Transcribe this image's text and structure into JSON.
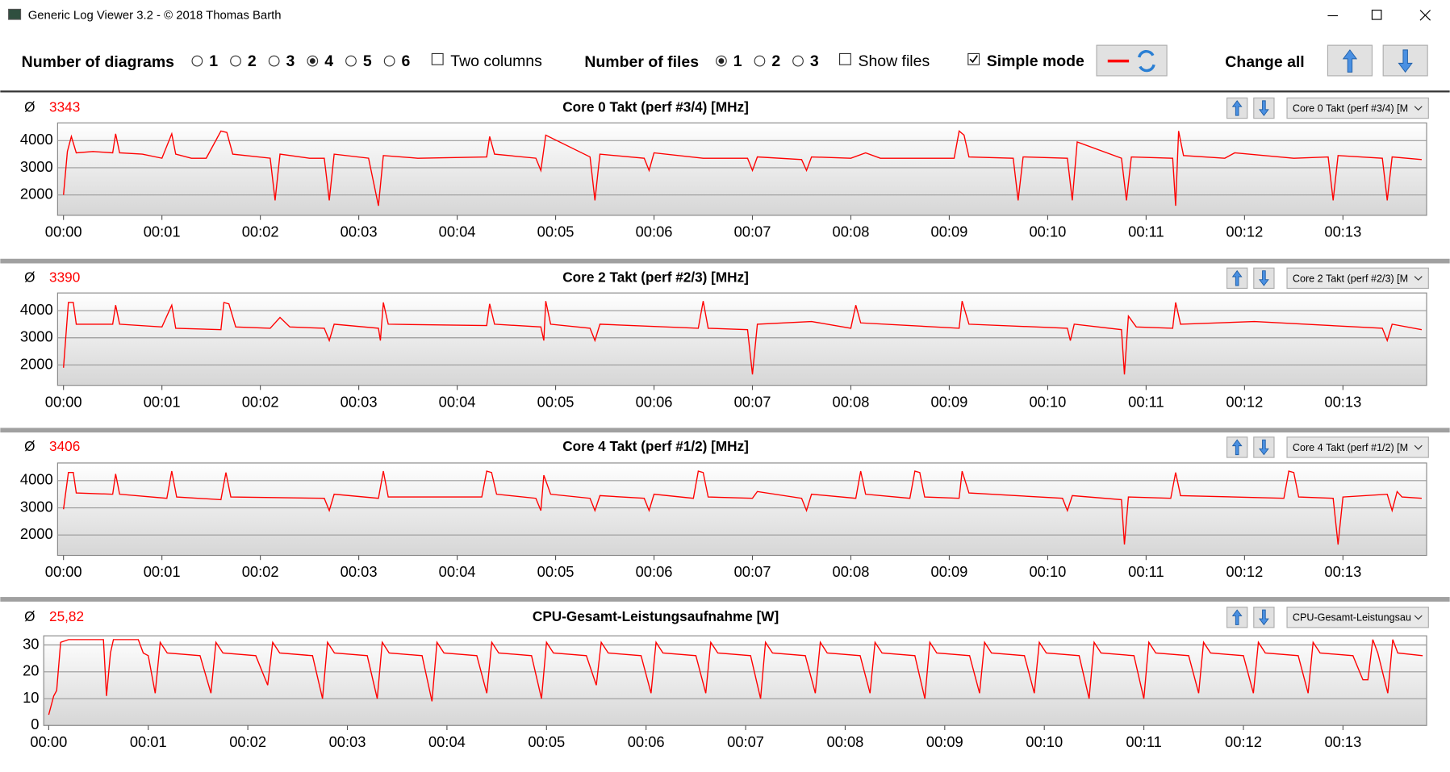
{
  "window": {
    "title": "Generic Log Viewer 3.2 - © 2018 Thomas Barth"
  },
  "toolbar": {
    "diagrams_label": "Number of diagrams",
    "diagram_options": [
      "1",
      "2",
      "3",
      "4",
      "5",
      "6"
    ],
    "diagrams_selected": "4",
    "two_columns": "Two columns",
    "two_columns_checked": false,
    "files_label": "Number of files",
    "file_options": [
      "1",
      "2",
      "3"
    ],
    "files_selected": "1",
    "show_files": "Show files",
    "show_files_checked": false,
    "simple_mode": "Simple mode",
    "simple_mode_checked": true,
    "change_all": "Change all"
  },
  "chart_data": [
    {
      "type": "line",
      "title": "Core 0 Takt (perf #3/4) [MHz]",
      "average_symbol": "Ø",
      "average": "3343",
      "selector": "Core 0 Takt (perf #3/4) [M",
      "color": "#ff0000",
      "x": [
        0,
        0.04,
        0.08,
        0.13,
        0.3,
        0.5,
        0.53,
        0.57,
        0.8,
        1.0,
        1.1,
        1.14,
        1.3,
        1.45,
        1.6,
        1.66,
        1.72,
        2.1,
        2.15,
        2.2,
        2.5,
        2.65,
        2.7,
        2.75,
        3.1,
        3.2,
        3.25,
        3.6,
        4.3,
        4.33,
        4.38,
        4.8,
        4.85,
        4.9,
        5.35,
        5.4,
        5.45,
        5.9,
        5.95,
        6.0,
        6.5,
        6.95,
        7.0,
        7.05,
        7.5,
        7.55,
        7.6,
        8.0,
        8.15,
        8.3,
        9.05,
        9.1,
        9.15,
        9.2,
        9.65,
        9.7,
        9.75,
        10.2,
        10.25,
        10.3,
        10.75,
        10.8,
        10.85,
        11.27,
        11.3,
        11.33,
        11.38,
        11.8,
        11.9,
        12.5,
        12.85,
        12.9,
        12.95,
        13.4,
        13.45,
        13.5,
        13.8
      ],
      "values": [
        2000,
        3600,
        4150,
        3550,
        3600,
        3550,
        4250,
        3550,
        3500,
        3350,
        4250,
        3500,
        3350,
        3350,
        4350,
        4300,
        3500,
        3350,
        1800,
        3500,
        3350,
        3350,
        1800,
        3500,
        3350,
        1600,
        3450,
        3350,
        3400,
        4150,
        3500,
        3350,
        2900,
        4200,
        3400,
        1800,
        3500,
        3350,
        2900,
        3550,
        3350,
        3350,
        2900,
        3400,
        3300,
        2900,
        3400,
        3350,
        3550,
        3350,
        3350,
        4350,
        4200,
        3400,
        3350,
        1800,
        3400,
        3350,
        1800,
        3950,
        3350,
        1800,
        3400,
        3350,
        1600,
        4350,
        3450,
        3350,
        3550,
        3350,
        3400,
        1800,
        3450,
        3350,
        1800,
        3400,
        3300
      ],
      "xlim": [
        -0.06,
        13.85
      ],
      "ylim": [
        1250,
        4650
      ],
      "yticks": [
        2000,
        3000,
        4000
      ],
      "xticks": [
        {
          "value": 0,
          "label": "00:00"
        },
        {
          "value": 1,
          "label": "00:01"
        },
        {
          "value": 2,
          "label": "00:02"
        },
        {
          "value": 3,
          "label": "00:03"
        },
        {
          "value": 4,
          "label": "00:04"
        },
        {
          "value": 5,
          "label": "00:05"
        },
        {
          "value": 6,
          "label": "00:06"
        },
        {
          "value": 7,
          "label": "00:07"
        },
        {
          "value": 8,
          "label": "00:08"
        },
        {
          "value": 9,
          "label": "00:09"
        },
        {
          "value": 10,
          "label": "00:10"
        },
        {
          "value": 11,
          "label": "00:11"
        },
        {
          "value": 12,
          "label": "00:12"
        },
        {
          "value": 13,
          "label": "00:13"
        }
      ],
      "grid": true
    },
    {
      "type": "line",
      "title": "Core 2 Takt (perf #2/3) [MHz]",
      "average_symbol": "Ø",
      "average": "3390",
      "selector": "Core 2 Takt (perf #2/3) [M",
      "color": "#ff0000",
      "x": [
        0,
        0.05,
        0.1,
        0.13,
        0.5,
        0.53,
        0.57,
        1.0,
        1.1,
        1.14,
        1.6,
        1.63,
        1.68,
        1.75,
        2.1,
        2.2,
        2.3,
        2.65,
        2.7,
        2.75,
        3.2,
        3.22,
        3.25,
        3.3,
        4.3,
        4.33,
        4.38,
        4.85,
        4.88,
        4.9,
        4.95,
        5.35,
        5.4,
        5.45,
        6.45,
        6.5,
        6.55,
        6.95,
        7.0,
        7.05,
        7.6,
        8.0,
        8.05,
        8.1,
        9.1,
        9.13,
        9.2,
        10.2,
        10.23,
        10.27,
        10.75,
        10.78,
        10.82,
        10.9,
        11.27,
        11.3,
        11.35,
        12.1,
        13.4,
        13.45,
        13.5,
        13.8
      ],
      "values": [
        1900,
        4300,
        4300,
        3500,
        3500,
        4200,
        3500,
        3400,
        4200,
        3350,
        3300,
        4300,
        4250,
        3400,
        3350,
        3750,
        3400,
        3350,
        2900,
        3500,
        3350,
        2900,
        4300,
        3500,
        3450,
        4250,
        3500,
        3400,
        2900,
        4350,
        3500,
        3350,
        2900,
        3500,
        3350,
        4350,
        3350,
        3300,
        1650,
        3500,
        3600,
        3350,
        4200,
        3550,
        3350,
        4350,
        3500,
        3350,
        2900,
        3500,
        3300,
        1650,
        3800,
        3400,
        3350,
        4300,
        3500,
        3600,
        3350,
        2900,
        3500,
        3300
      ],
      "xlim": [
        -0.06,
        13.85
      ],
      "ylim": [
        1250,
        4650
      ],
      "yticks": [
        2000,
        3000,
        4000
      ],
      "xticks": [
        {
          "value": 0,
          "label": "00:00"
        },
        {
          "value": 1,
          "label": "00:01"
        },
        {
          "value": 2,
          "label": "00:02"
        },
        {
          "value": 3,
          "label": "00:03"
        },
        {
          "value": 4,
          "label": "00:04"
        },
        {
          "value": 5,
          "label": "00:05"
        },
        {
          "value": 6,
          "label": "00:06"
        },
        {
          "value": 7,
          "label": "00:07"
        },
        {
          "value": 8,
          "label": "00:08"
        },
        {
          "value": 9,
          "label": "00:09"
        },
        {
          "value": 10,
          "label": "00:10"
        },
        {
          "value": 11,
          "label": "00:11"
        },
        {
          "value": 12,
          "label": "00:12"
        },
        {
          "value": 13,
          "label": "00:13"
        }
      ],
      "grid": true
    },
    {
      "type": "line",
      "title": "Core 4 Takt (perf #1/2) [MHz]",
      "average_symbol": "Ø",
      "average": "3406",
      "selector": "Core 4 Takt (perf #1/2) [M",
      "color": "#ff0000",
      "x": [
        0,
        0.05,
        0.1,
        0.13,
        0.5,
        0.53,
        0.57,
        1.05,
        1.1,
        1.15,
        1.6,
        1.65,
        1.7,
        2.65,
        2.7,
        2.75,
        3.2,
        3.25,
        3.3,
        4.25,
        4.3,
        4.35,
        4.4,
        4.8,
        4.85,
        4.88,
        4.95,
        5.35,
        5.4,
        5.45,
        5.9,
        5.95,
        6.0,
        6.4,
        6.45,
        6.5,
        6.55,
        7.0,
        7.05,
        7.5,
        7.55,
        7.6,
        8.05,
        8.1,
        8.15,
        8.6,
        8.65,
        8.7,
        8.75,
        9.1,
        9.13,
        9.2,
        10.15,
        10.2,
        10.25,
        10.75,
        10.78,
        10.82,
        11.25,
        11.3,
        11.35,
        12.4,
        12.45,
        12.5,
        12.55,
        12.9,
        12.95,
        13.0,
        13.45,
        13.5,
        13.55,
        13.6,
        13.8
      ],
      "values": [
        2950,
        4300,
        4300,
        3550,
        3500,
        4250,
        3500,
        3350,
        4350,
        3400,
        3300,
        4300,
        3400,
        3350,
        2900,
        3500,
        3350,
        4350,
        3400,
        3400,
        4350,
        4300,
        3500,
        3350,
        2900,
        4200,
        3500,
        3350,
        2900,
        3450,
        3350,
        2900,
        3500,
        3350,
        4350,
        4300,
        3400,
        3350,
        3600,
        3350,
        2900,
        3500,
        3350,
        4350,
        3500,
        3350,
        4350,
        4300,
        3400,
        3350,
        4350,
        3550,
        3350,
        2900,
        3450,
        3300,
        1650,
        3400,
        3350,
        4300,
        3450,
        3350,
        4350,
        4300,
        3400,
        3350,
        1650,
        3400,
        3500,
        2900,
        3600,
        3400,
        3350
      ],
      "xlim": [
        -0.06,
        13.85
      ],
      "ylim": [
        1250,
        4650
      ],
      "yticks": [
        2000,
        3000,
        4000
      ],
      "xticks": [
        {
          "value": 0,
          "label": "00:00"
        },
        {
          "value": 1,
          "label": "00:01"
        },
        {
          "value": 2,
          "label": "00:02"
        },
        {
          "value": 3,
          "label": "00:03"
        },
        {
          "value": 4,
          "label": "00:04"
        },
        {
          "value": 5,
          "label": "00:05"
        },
        {
          "value": 6,
          "label": "00:06"
        },
        {
          "value": 7,
          "label": "00:07"
        },
        {
          "value": 8,
          "label": "00:08"
        },
        {
          "value": 9,
          "label": "00:09"
        },
        {
          "value": 10,
          "label": "00:10"
        },
        {
          "value": 11,
          "label": "00:11"
        },
        {
          "value": 12,
          "label": "00:12"
        },
        {
          "value": 13,
          "label": "00:13"
        }
      ],
      "grid": true
    },
    {
      "type": "line",
      "title": "CPU-Gesamt-Leistungsaufnahme [W]",
      "average_symbol": "Ø",
      "average": "25,82",
      "selector": "CPU-Gesamt-Leistungsau",
      "color": "#ff0000",
      "x": [
        0,
        0.05,
        0.08,
        0.12,
        0.2,
        0.55,
        0.58,
        0.62,
        0.65,
        0.9,
        0.95,
        1.0,
        1.07,
        1.12,
        1.19,
        1.52,
        1.63,
        1.68,
        1.75,
        2.08,
        2.2,
        2.25,
        2.32,
        2.65,
        2.75,
        2.8,
        2.87,
        3.2,
        3.3,
        3.35,
        3.42,
        3.75,
        3.85,
        3.9,
        3.97,
        4.3,
        4.4,
        4.45,
        4.52,
        4.85,
        4.95,
        5.0,
        5.07,
        5.4,
        5.5,
        5.55,
        5.62,
        5.95,
        6.05,
        6.1,
        6.17,
        6.5,
        6.6,
        6.65,
        6.72,
        7.05,
        7.15,
        7.2,
        7.27,
        7.6,
        7.7,
        7.75,
        7.82,
        8.15,
        8.25,
        8.3,
        8.37,
        8.7,
        8.8,
        8.85,
        8.92,
        9.25,
        9.35,
        9.4,
        9.47,
        9.8,
        9.9,
        9.95,
        10.02,
        10.35,
        10.45,
        10.5,
        10.57,
        10.9,
        11.0,
        11.05,
        11.12,
        11.45,
        11.55,
        11.6,
        11.67,
        12.0,
        12.1,
        12.15,
        12.22,
        12.55,
        12.65,
        12.7,
        12.77,
        13.1,
        13.2,
        13.25,
        13.3,
        13.35,
        13.45,
        13.5,
        13.55,
        13.8
      ],
      "values": [
        4,
        11,
        13,
        31,
        32,
        32,
        11,
        27,
        32,
        32,
        27,
        26,
        12,
        31,
        27,
        26,
        12,
        31,
        27,
        26,
        15,
        31,
        27,
        26,
        10,
        31,
        27,
        26,
        10,
        31,
        27,
        26,
        9,
        31,
        27,
        26,
        12,
        31,
        27,
        26,
        10,
        31,
        27,
        26,
        15,
        31,
        27,
        26,
        12,
        31,
        27,
        26,
        12,
        31,
        27,
        26,
        10,
        31,
        27,
        26,
        12,
        31,
        27,
        26,
        12,
        31,
        27,
        26,
        10,
        31,
        27,
        26,
        12,
        31,
        27,
        26,
        12,
        31,
        27,
        26,
        10,
        31,
        27,
        26,
        10,
        31,
        27,
        26,
        12,
        31,
        27,
        26,
        12,
        31,
        27,
        26,
        12,
        31,
        27,
        26,
        17,
        17,
        32,
        27,
        12,
        32,
        27,
        26
      ],
      "xlim": [
        -0.05,
        13.84
      ],
      "ylim": [
        0,
        33.4
      ],
      "yticks": [
        0,
        10,
        20,
        30
      ],
      "xticks": [
        {
          "value": 0,
          "label": "00:00"
        },
        {
          "value": 1,
          "label": "00:01"
        },
        {
          "value": 2,
          "label": "00:02"
        },
        {
          "value": 3,
          "label": "00:03"
        },
        {
          "value": 4,
          "label": "00:04"
        },
        {
          "value": 5,
          "label": "00:05"
        },
        {
          "value": 6,
          "label": "00:06"
        },
        {
          "value": 7,
          "label": "00:07"
        },
        {
          "value": 8,
          "label": "00:08"
        },
        {
          "value": 9,
          "label": "00:09"
        },
        {
          "value": 10,
          "label": "00:10"
        },
        {
          "value": 11,
          "label": "00:11"
        },
        {
          "value": 12,
          "label": "00:12"
        },
        {
          "value": 13,
          "label": "00:13"
        }
      ],
      "grid": true
    }
  ]
}
